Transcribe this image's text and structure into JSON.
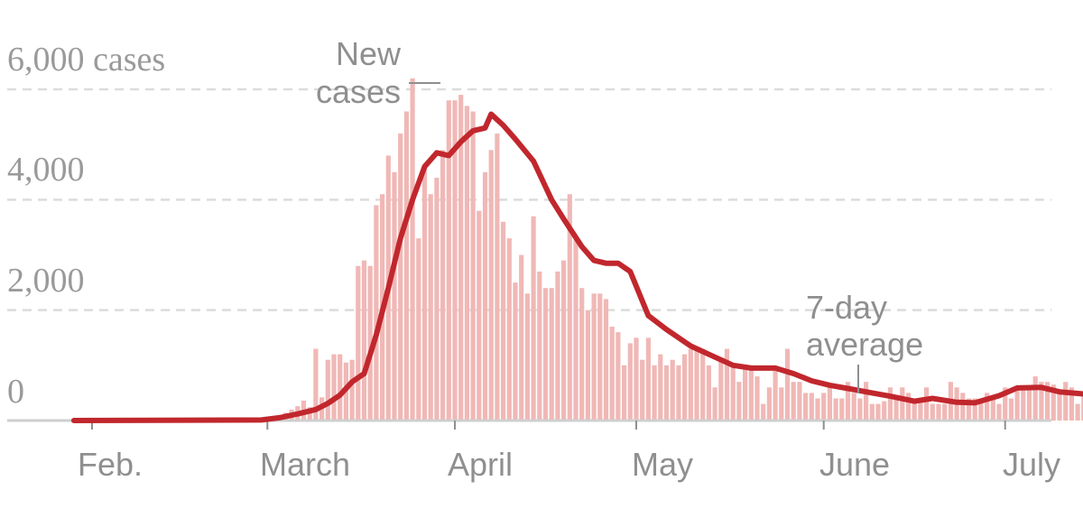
{
  "chart_data": {
    "type": "bar",
    "title": "",
    "xlabel": "",
    "ylabel": "",
    "y_tick_labels": [
      "6,000 cases",
      "4,000",
      "2,000",
      "0"
    ],
    "y_ticks": [
      6000,
      4000,
      2000,
      0
    ],
    "ylim": [
      0,
      6000
    ],
    "grid": true,
    "x_tick_labels": [
      "Feb.",
      "March",
      "April",
      "May",
      "June",
      "July"
    ],
    "x_ticks": [
      "2020-02-01",
      "2020-03-01",
      "2020-04-01",
      "2020-05-01",
      "2020-06-01",
      "2020-07-01"
    ],
    "annotations": {
      "bars_label": [
        "New",
        "cases"
      ],
      "average_label": [
        "7-day",
        "average"
      ]
    },
    "colors": {
      "bars": "#f0b8b6",
      "average_line": "#c1272d",
      "grid": "#dcdcdc"
    },
    "series": [
      {
        "name": "New cases",
        "type": "bar",
        "start_date": "2020-02-26",
        "values": [
          10,
          15,
          20,
          30,
          60,
          80,
          100,
          140,
          200,
          260,
          360,
          240,
          1300,
          420,
          1100,
          1200,
          1200,
          1050,
          1100,
          2800,
          2900,
          2800,
          3900,
          4100,
          4800,
          4500,
          5200,
          5600,
          6200,
          3300,
          4600,
          4100,
          4400,
          4900,
          5800,
          5800,
          5900,
          5700,
          5600,
          3800,
          4500,
          4900,
          5200,
          3600,
          3300,
          2500,
          3000,
          2300,
          3700,
          2700,
          2400,
          2400,
          2700,
          2900,
          4100,
          3300,
          2400,
          2000,
          2300,
          2300,
          2200,
          1700,
          1600,
          1000,
          1400,
          1500,
          1100,
          1500,
          1000,
          1200,
          1000,
          1100,
          1000,
          1200,
          1300,
          1300,
          1300,
          1000,
          600,
          1100,
          1300,
          1000,
          700,
          1000,
          1000,
          800,
          300,
          600,
          900,
          600,
          1300,
          700,
          700,
          500,
          500,
          400,
          500,
          600,
          400,
          400,
          700,
          500,
          400,
          700,
          300,
          300,
          350,
          600,
          400,
          600,
          500,
          400,
          400,
          600,
          300,
          300,
          300,
          700,
          600,
          500,
          400,
          400,
          400,
          500,
          400,
          300,
          600,
          400,
          600,
          600,
          600,
          800,
          700,
          700,
          650,
          500,
          700,
          600,
          300,
          500,
          700,
          500,
          600,
          400,
          300,
          300
        ]
      },
      {
        "name": "7-day average",
        "type": "line",
        "points": [
          [
            "2020-01-29",
            0
          ],
          [
            "2020-02-29",
            10
          ],
          [
            "2020-03-03",
            50
          ],
          [
            "2020-03-06",
            120
          ],
          [
            "2020-03-09",
            200
          ],
          [
            "2020-03-11",
            310
          ],
          [
            "2020-03-13",
            460
          ],
          [
            "2020-03-15",
            700
          ],
          [
            "2020-03-17",
            850
          ],
          [
            "2020-03-19",
            1550
          ],
          [
            "2020-03-21",
            2400
          ],
          [
            "2020-03-23",
            3300
          ],
          [
            "2020-03-25",
            4000
          ],
          [
            "2020-03-27",
            4600
          ],
          [
            "2020-03-29",
            4850
          ],
          [
            "2020-03-31",
            4800
          ],
          [
            "2020-04-02",
            5050
          ],
          [
            "2020-04-04",
            5250
          ],
          [
            "2020-04-06",
            5300
          ],
          [
            "2020-04-07",
            5550
          ],
          [
            "2020-04-09",
            5350
          ],
          [
            "2020-04-11",
            5100
          ],
          [
            "2020-04-14",
            4700
          ],
          [
            "2020-04-17",
            4000
          ],
          [
            "2020-04-19",
            3650
          ],
          [
            "2020-04-22",
            3150
          ],
          [
            "2020-04-24",
            2900
          ],
          [
            "2020-04-26",
            2850
          ],
          [
            "2020-04-28",
            2850
          ],
          [
            "2020-04-30",
            2700
          ],
          [
            "2020-05-03",
            1900
          ],
          [
            "2020-05-06",
            1650
          ],
          [
            "2020-05-10",
            1350
          ],
          [
            "2020-05-14",
            1150
          ],
          [
            "2020-05-17",
            1000
          ],
          [
            "2020-05-20",
            950
          ],
          [
            "2020-05-24",
            950
          ],
          [
            "2020-05-27",
            850
          ],
          [
            "2020-05-30",
            720
          ],
          [
            "2020-06-02",
            640
          ],
          [
            "2020-06-05",
            580
          ],
          [
            "2020-06-09",
            500
          ],
          [
            "2020-06-12",
            440
          ],
          [
            "2020-06-16",
            350
          ],
          [
            "2020-06-19",
            400
          ],
          [
            "2020-06-23",
            330
          ],
          [
            "2020-06-26",
            320
          ],
          [
            "2020-06-30",
            450
          ],
          [
            "2020-07-03",
            590
          ],
          [
            "2020-07-07",
            600
          ],
          [
            "2020-07-10",
            520
          ],
          [
            "2020-07-14",
            480
          ],
          [
            "2020-07-18",
            440
          ],
          [
            "2020-07-21",
            420
          ]
        ]
      }
    ]
  }
}
